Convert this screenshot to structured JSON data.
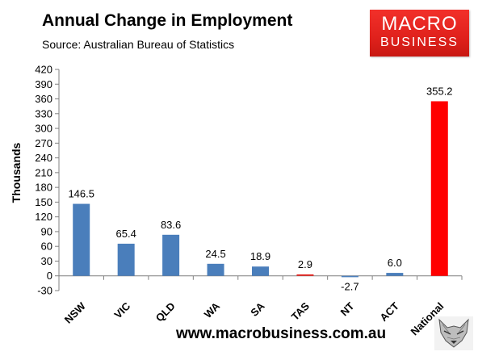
{
  "header": {
    "title": "Annual Change in Employment",
    "subtitle": "Source: Australian Bureau of Statistics"
  },
  "logo": {
    "line1": "MACRO",
    "line2": "BUSINESS",
    "color": "#e0211c"
  },
  "footer": {
    "url": "www.macrobusiness.com.au",
    "fox_icon": "fox-head-icon"
  },
  "chart_data": {
    "type": "bar",
    "title": "Annual Change in Employment",
    "ylabel": "Thousands",
    "xlabel": "",
    "ylim": [
      -30,
      420
    ],
    "yticks": [
      -30,
      0,
      30,
      60,
      90,
      120,
      150,
      180,
      210,
      240,
      270,
      300,
      330,
      360,
      390,
      420
    ],
    "grid": false,
    "categories": [
      "NSW",
      "VIC",
      "QLD",
      "WA",
      "SA",
      "TAS",
      "NT",
      "ACT",
      "National"
    ],
    "values": [
      146.5,
      65.4,
      83.6,
      24.5,
      18.9,
      2.9,
      -2.7,
      6.0,
      355.2
    ],
    "labels": [
      "146.5",
      "65.4",
      "83.6",
      "24.5",
      "18.9",
      "2.9",
      "-2.7",
      "6.0",
      "355.2"
    ],
    "colors": [
      "#4a7ebb",
      "#4a7ebb",
      "#4a7ebb",
      "#4a7ebb",
      "#4a7ebb",
      "#e8201c",
      "#4a7ebb",
      "#4a7ebb",
      "#ff0000"
    ]
  }
}
